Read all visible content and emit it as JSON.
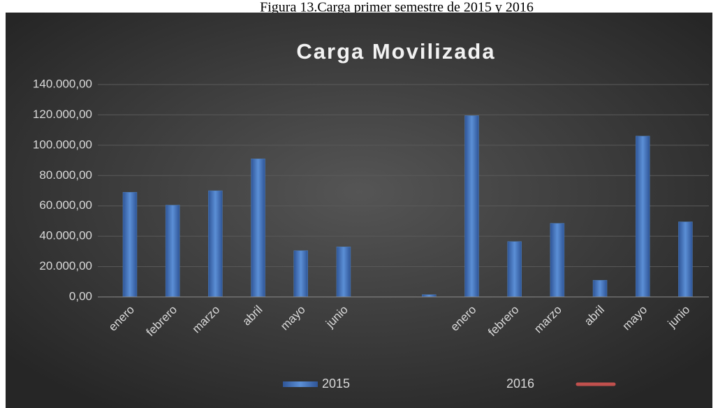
{
  "caption": "Figura 13.Carga primer semestre de 2015 y 2016",
  "chart_data": {
    "type": "bar",
    "title": "Carga Movilizada",
    "categories": [
      "enero",
      "febrero",
      "marzo",
      "abril",
      "mayo",
      "junio",
      null,
      null,
      "enero",
      "febrero",
      "marzo",
      "abril",
      "mayo",
      "junio"
    ],
    "series": [
      {
        "name": "2015",
        "color": "#4f81bd",
        "values": [
          69000,
          60500,
          70000,
          91000,
          30500,
          33000,
          null,
          1500,
          119500,
          36500,
          48500,
          11000,
          106000,
          49500
        ]
      },
      {
        "name": "2016",
        "color": "#c0504d",
        "type": "line",
        "values": [
          null,
          null,
          null,
          null,
          null,
          null,
          null,
          null,
          null,
          null,
          null,
          null,
          null,
          null
        ]
      }
    ],
    "ylim": [
      0,
      140000
    ],
    "yticks": [
      {
        "value": 0,
        "label": "0,00"
      },
      {
        "value": 20000,
        "label": "20.000,00"
      },
      {
        "value": 40000,
        "label": "40.000,00"
      },
      {
        "value": 60000,
        "label": "60.000,00"
      },
      {
        "value": 80000,
        "label": "80.000,00"
      },
      {
        "value": 100000,
        "label": "100.000,00"
      },
      {
        "value": 120000,
        "label": "120.000,00"
      },
      {
        "value": 140000,
        "label": "140.000,00"
      }
    ],
    "grid": true,
    "legend": "bottom"
  }
}
